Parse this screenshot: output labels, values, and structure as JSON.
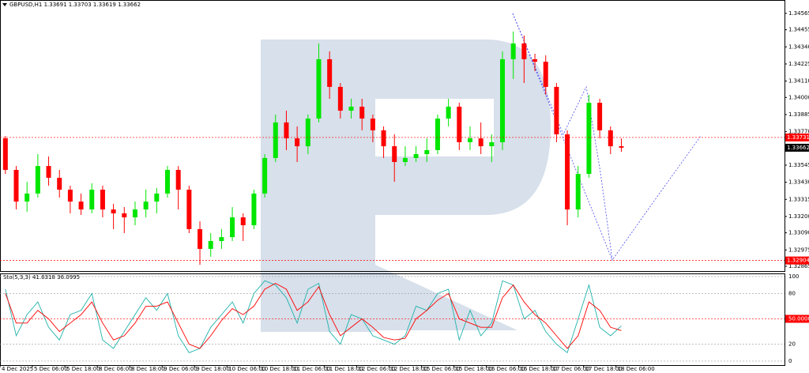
{
  "chart_data": [
    {
      "type": "candlestick",
      "title": "GBPUSD,H1  1.33691 1.33703 1.33619 1.33662",
      "up_color": "#00e600",
      "down_color": "#ff0000",
      "open": [
        1.33725,
        1.33513,
        1.333,
        1.33354,
        1.33539,
        1.3346,
        1.3338,
        1.333,
        1.33247,
        1.3338,
        1.33247,
        1.33221,
        1.33194,
        1.33247,
        1.333,
        1.33354,
        1.33513,
        1.3338,
        1.33115,
        1.32982,
        1.33035,
        1.33061,
        1.33194,
        1.33141,
        1.33354,
        1.33593,
        1.33832,
        1.33725,
        1.33672,
        1.33858,
        1.34257,
        1.34071,
        1.33911,
        1.33938,
        1.33858,
        1.33779,
        1.33672,
        1.33566,
        1.33593,
        1.33619,
        1.33646,
        1.33858,
        1.33938,
        1.33699,
        1.33725,
        1.33672,
        1.33699,
        1.34257,
        1.34363,
        1.34257,
        1.3424,
        1.34071,
        1.33752,
        1.33247,
        1.33486,
        1.33964,
        1.33779,
        1.33672
      ],
      "high": [
        1.33741,
        1.33539,
        1.33433,
        1.33619,
        1.33603,
        1.33513,
        1.33407,
        1.33354,
        1.33423,
        1.33407,
        1.33285,
        1.33263,
        1.333,
        1.3338,
        1.33391,
        1.33539,
        1.33539,
        1.33407,
        1.33168,
        1.33088,
        1.33115,
        1.33263,
        1.33221,
        1.3338,
        1.33619,
        1.33885,
        1.33911,
        1.33805,
        1.33885,
        1.34363,
        1.3431,
        1.34097,
        1.33991,
        1.33991,
        1.33885,
        1.33805,
        1.33752,
        1.33672,
        1.33672,
        1.33725,
        1.33885,
        1.33991,
        1.33964,
        1.33805,
        1.33832,
        1.33752,
        1.3431,
        1.34443,
        1.34416,
        1.34294,
        1.34283,
        1.34097,
        1.33779,
        1.33539,
        1.34018,
        1.33991,
        1.33805,
        1.33725
      ],
      "low": [
        1.33486,
        1.33247,
        1.33231,
        1.33327,
        1.33407,
        1.33327,
        1.33221,
        1.3321,
        1.33221,
        1.33194,
        1.33115,
        1.33088,
        1.33141,
        1.33194,
        1.33221,
        1.33327,
        1.33247,
        1.33088,
        1.32875,
        1.32929,
        1.32982,
        1.33035,
        1.33035,
        1.33115,
        1.33327,
        1.33566,
        1.33646,
        1.33566,
        1.33619,
        1.33832,
        1.33991,
        1.33858,
        1.33858,
        1.33779,
        1.33699,
        1.33593,
        1.33433,
        1.33539,
        1.33566,
        1.33566,
        1.33619,
        1.33805,
        1.33646,
        1.33646,
        1.33619,
        1.33566,
        1.33646,
        1.34124,
        1.34097,
        1.34177,
        1.34018,
        1.33699,
        1.33141,
        1.33194,
        1.3346,
        1.33725,
        1.33619,
        1.33635
      ],
      "close": [
        1.33513,
        1.333,
        1.33354,
        1.33539,
        1.3346,
        1.3338,
        1.333,
        1.33247,
        1.3338,
        1.33247,
        1.33221,
        1.33194,
        1.33247,
        1.333,
        1.33354,
        1.33513,
        1.3338,
        1.33115,
        1.32982,
        1.33035,
        1.33061,
        1.33194,
        1.33141,
        1.33354,
        1.33593,
        1.33832,
        1.33725,
        1.33672,
        1.33858,
        1.34257,
        1.34071,
        1.33911,
        1.33938,
        1.33858,
        1.33779,
        1.33672,
        1.33566,
        1.33593,
        1.33619,
        1.33646,
        1.33858,
        1.33938,
        1.33699,
        1.33725,
        1.33672,
        1.33699,
        1.34257,
        1.34363,
        1.34257,
        1.3424,
        1.34071,
        1.33752,
        1.33247,
        1.33486,
        1.33964,
        1.33779,
        1.33672,
        1.33662
      ],
      "xlim": [
        0,
        72.6
      ],
      "xticks": [
        {
          "value": 0,
          "label": "4 Dec 2025"
        },
        {
          "value": 3,
          "label": "5 Dec 06:00"
        },
        {
          "value": 6,
          "label": "5 Dec 18:00"
        },
        {
          "value": 9,
          "label": "8 Dec 06:00"
        },
        {
          "value": 12,
          "label": "8 Dec 18:00"
        },
        {
          "value": 15,
          "label": "9 Dec 06:00"
        },
        {
          "value": 18,
          "label": "9 Dec 18:00"
        },
        {
          "value": 21,
          "label": "10 Dec 06:00"
        },
        {
          "value": 24,
          "label": "10 Dec 18:00"
        },
        {
          "value": 27,
          "label": "11 Dec 06:00"
        },
        {
          "value": 30,
          "label": "11 Dec 18:00"
        },
        {
          "value": 33,
          "label": "12 Dec 06:00"
        },
        {
          "value": 36,
          "label": "12 Dec 18:00"
        },
        {
          "value": 39,
          "label": "15 Dec 06:00"
        },
        {
          "value": 42,
          "label": "15 Dec 18:00"
        },
        {
          "value": 45,
          "label": "16 Dec 06:00"
        },
        {
          "value": 48,
          "label": "16 Dec 18:00"
        },
        {
          "value": 51,
          "label": "17 Dec 06:00"
        },
        {
          "value": 54,
          "label": "17 Dec 18:00"
        },
        {
          "value": 57,
          "label": "18 Dec 06:00"
        }
      ],
      "ylim": [
        1.32833,
        1.34655
      ],
      "yticks": [
        {
          "value": 1.34565,
          "label": "1.34565"
        },
        {
          "value": 1.34455,
          "label": "1.34455"
        },
        {
          "value": 1.3434,
          "label": "1.34340"
        },
        {
          "value": 1.34225,
          "label": "1.34225"
        },
        {
          "value": 1.3411,
          "label": "1.34110"
        },
        {
          "value": 1.34,
          "label": "1.34000"
        },
        {
          "value": 1.33885,
          "label": "1.33885"
        },
        {
          "value": 1.3377,
          "label": "1.33770"
        },
        {
          "value": 1.33545,
          "label": "1.33545"
        },
        {
          "value": 1.3343,
          "label": "1.33430"
        },
        {
          "value": 1.33315,
          "label": "1.33315"
        },
        {
          "value": 1.332,
          "label": "1.33200"
        },
        {
          "value": 1.3309,
          "label": "1.33090"
        },
        {
          "value": 1.32975,
          "label": "1.32975"
        },
        {
          "value": 1.32865,
          "label": "1.32865"
        }
      ],
      "price_markers": [
        {
          "value": 1.33731,
          "color": "#ff0000",
          "line": true
        },
        {
          "value": 1.33662,
          "color": "#000000",
          "line": false
        },
        {
          "value": 1.32904,
          "color": "#ff0000",
          "line": true
        }
      ]
    },
    {
      "type": "line",
      "title": "Sto(5,3,3) 41.6318 36.0995",
      "xlim": [
        0,
        72.6
      ],
      "ylim": [
        -4.7,
        103.7
      ],
      "yticks": [
        100,
        80,
        {
          "value": 50,
          "label": "50.0000",
          "color": "#ff0000"
        },
        20,
        0
      ],
      "series": [
        {
          "color": "#20b2aa",
          "values": [
            85,
            30,
            55,
            70,
            40,
            25,
            55,
            60,
            80,
            25,
            15,
            35,
            55,
            75,
            60,
            80,
            30,
            10,
            15,
            40,
            55,
            70,
            45,
            80,
            95,
            90,
            75,
            45,
            85,
            92,
            35,
            20,
            55,
            50,
            30,
            25,
            20,
            30,
            65,
            60,
            80,
            85,
            25,
            60,
            30,
            45,
            95,
            90,
            50,
            60,
            35,
            20,
            10,
            50,
            90,
            40,
            30,
            41.6318
          ]
        },
        {
          "color": "#ff0000",
          "values": [
            80,
            45,
            45,
            60,
            50,
            35,
            45,
            55,
            70,
            45,
            25,
            30,
            45,
            65,
            65,
            70,
            45,
            20,
            15,
            30,
            48,
            62,
            55,
            65,
            85,
            92,
            85,
            60,
            70,
            88,
            55,
            30,
            40,
            50,
            40,
            28,
            25,
            27,
            50,
            60,
            72,
            80,
            50,
            45,
            40,
            40,
            75,
            90,
            70,
            55,
            45,
            30,
            15,
            30,
            70,
            60,
            40,
            36.0995
          ]
        }
      ]
    }
  ]
}
